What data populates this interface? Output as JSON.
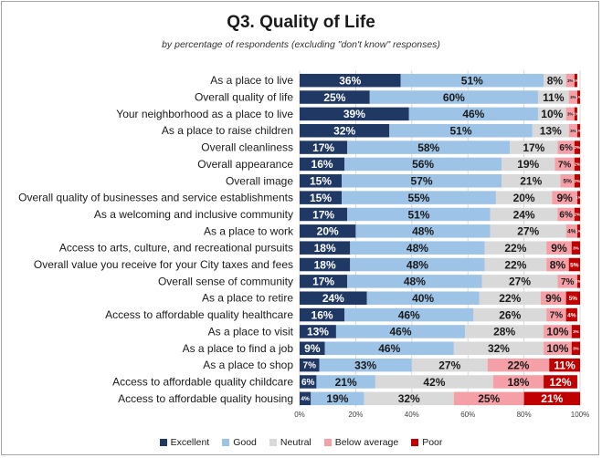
{
  "chart_data": {
    "type": "bar",
    "orientation": "horizontal",
    "stacked": true,
    "title": "Q3. Quality of Life",
    "subtitle": "by percentage of respondents (excluding \"don't know\" responses)",
    "xlim": [
      0,
      100
    ],
    "x_ticks": [
      "0%",
      "20%",
      "40%",
      "60%",
      "80%",
      "100%"
    ],
    "grid": true,
    "legend_position": "bottom",
    "categories": [
      "As a place to live",
      "Overall quality of life",
      "Your neighborhood as a place to live",
      "As a place to raise children",
      "Overall cleanliness",
      "Overall appearance",
      "Overall image",
      "Overall quality of businesses and service establishments",
      "As a welcoming and inclusive community",
      "As a place to work",
      "Access to arts, culture, and recreational pursuits",
      "Overall value you receive for your City taxes and fees",
      "Overall sense of community",
      "As a place to retire",
      "Access to affordable quality healthcare",
      "As a place to visit",
      "As a place to find a job",
      "As a place to shop",
      "Access to affordable quality childcare",
      "Access to affordable quality housing"
    ],
    "series": [
      {
        "name": "Excellent",
        "color": "#1f3864",
        "label_color": "#ffffff",
        "values": [
          36,
          25,
          39,
          32,
          17,
          16,
          15,
          15,
          17,
          20,
          18,
          18,
          17,
          24,
          16,
          13,
          9,
          7,
          6,
          4
        ]
      },
      {
        "name": "Good",
        "color": "#9dc3e6",
        "label_color": "#1a1a1a",
        "values": [
          51,
          60,
          46,
          51,
          58,
          56,
          57,
          55,
          51,
          48,
          48,
          48,
          48,
          40,
          46,
          46,
          46,
          33,
          21,
          19
        ]
      },
      {
        "name": "Neutral",
        "color": "#d9d9d9",
        "label_color": "#1a1a1a",
        "values": [
          8,
          11,
          10,
          13,
          17,
          19,
          21,
          20,
          24,
          27,
          22,
          22,
          27,
          22,
          26,
          28,
          32,
          27,
          42,
          32
        ]
      },
      {
        "name": "Below average",
        "color": "#f4a0a6",
        "label_color": "#1a1a1a",
        "values": [
          3,
          3,
          3,
          3,
          6,
          7,
          5,
          9,
          6,
          4,
          9,
          8,
          7,
          9,
          7,
          10,
          10,
          22,
          18,
          25
        ]
      },
      {
        "name": "Poor",
        "color": "#c00000",
        "label_color": "#ffffff",
        "values": [
          1,
          1,
          1,
          1,
          2,
          2,
          2,
          1,
          2,
          1,
          3,
          5,
          2,
          5,
          4,
          3,
          3,
          11,
          12,
          21
        ]
      }
    ]
  }
}
